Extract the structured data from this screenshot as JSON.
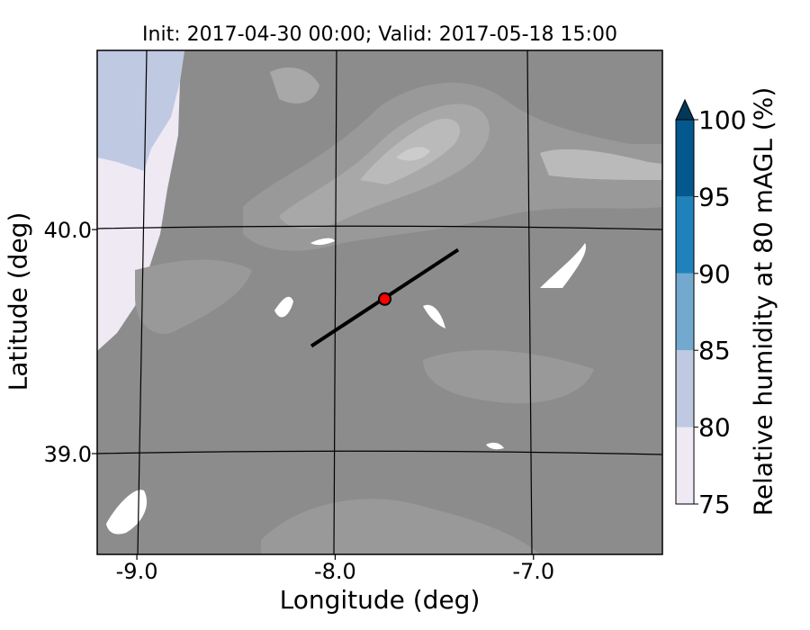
{
  "chart_data": {
    "type": "heatmap",
    "title": "Init: 2017-04-30 00:00; Valid: 2017-05-18 15:00",
    "xlabel": "Longitude (deg)",
    "ylabel": "Latitude (deg)",
    "xlim": [
      -9.2,
      -6.35
    ],
    "ylim": [
      38.55,
      40.8
    ],
    "xticks": [
      -9.0,
      -8.0,
      -7.0
    ],
    "xtick_labels": [
      "-9.0",
      "-8.0",
      "-7.0"
    ],
    "yticks": [
      39.0,
      40.0
    ],
    "ytick_labels": [
      "39.0",
      "40.0"
    ],
    "grid": true,
    "colorbar": {
      "label": "Relative humidity at 80 mAGL (%)",
      "levels": [
        75,
        80,
        85,
        90,
        95,
        100
      ],
      "tick_labels": [
        "75",
        "80",
        "85",
        "90",
        "95",
        "100"
      ],
      "colors": [
        "#efe9f4",
        "#bfc9e2",
        "#74a9cf",
        "#1f82bb",
        "#03588e"
      ],
      "extend": "max",
      "extend_color": "#023858"
    },
    "terrain_shading_colors": [
      "#8c8c8c",
      "#999999",
      "#a8a8a8",
      "#bababa",
      "#cccccc"
    ],
    "transect": {
      "start": {
        "lon": -8.12,
        "lat": 39.48
      },
      "end": {
        "lon": -7.38,
        "lat": 39.91
      },
      "color": "#000000"
    },
    "marker": {
      "lon": -7.75,
      "lat": 39.69,
      "color": "#ff0000"
    }
  }
}
